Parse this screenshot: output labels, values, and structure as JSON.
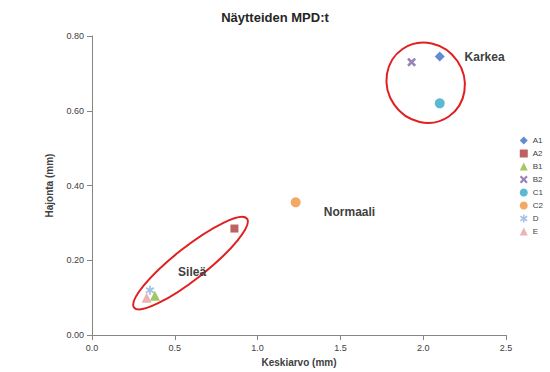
{
  "chart_data": {
    "type": "scatter",
    "title": "Näytteiden MPD:t",
    "x_label": "Keskiarvo (mm)",
    "y_label": "Hajonta (mm)",
    "xlim": [
      0,
      2.5
    ],
    "ylim": [
      0,
      0.8
    ],
    "xticks": [
      {
        "value": 0,
        "label": "0.0"
      },
      {
        "value": 0.5,
        "label": "0.5"
      },
      {
        "value": 1,
        "label": "1.0"
      },
      {
        "value": 1.5,
        "label": "1.5"
      },
      {
        "value": 2,
        "label": "2.0"
      },
      {
        "value": 2.5,
        "label": "2.5"
      }
    ],
    "yticks": [
      {
        "value": 0,
        "label": "0.00"
      },
      {
        "value": 0.2,
        "label": "0.20"
      },
      {
        "value": 0.4,
        "label": "0.40"
      },
      {
        "value": 0.6,
        "label": "0.60"
      },
      {
        "value": 0.8,
        "label": "0.80"
      }
    ],
    "grid": false,
    "legend": "right",
    "series": [
      {
        "name": "A1",
        "color": "#3c6ec8",
        "marker": "diamond",
        "x": [
          2.1
        ],
        "values": [
          0.745
        ]
      },
      {
        "name": "A2",
        "color": "#b03a3a",
        "marker": "square",
        "x": [
          0.86
        ],
        "values": [
          0.285
        ]
      },
      {
        "name": "B1",
        "color": "#8cb93c",
        "marker": "triangle",
        "x": [
          0.38
        ],
        "values": [
          0.105
        ]
      },
      {
        "name": "B2",
        "color": "#8064a2",
        "marker": "x",
        "x": [
          1.93
        ],
        "values": [
          0.73
        ]
      },
      {
        "name": "C1",
        "color": "#33a7c6",
        "marker": "circle",
        "x": [
          2.1
        ],
        "values": [
          0.62
        ]
      },
      {
        "name": "C2",
        "color": "#f0923c",
        "marker": "circle",
        "x": [
          1.23
        ],
        "values": [
          0.355
        ]
      },
      {
        "name": "D",
        "color": "#8fb4e3",
        "marker": "star",
        "x": [
          0.35
        ],
        "values": [
          0.12
        ]
      },
      {
        "name": "E",
        "color": "#e6a0a0",
        "marker": "triangle",
        "x": [
          0.33
        ],
        "values": [
          0.1
        ]
      }
    ],
    "annotations": [
      {
        "text": "Karkea",
        "x": 2.25,
        "y": 0.745,
        "members": [
          "A1",
          "B2",
          "C1"
        ]
      },
      {
        "text": "Normaali",
        "x": 1.4,
        "y": 0.33,
        "members": []
      },
      {
        "text": "Sileä",
        "x": 0.52,
        "y": 0.17,
        "members": [
          "A2",
          "B1",
          "D",
          "E"
        ]
      }
    ]
  }
}
